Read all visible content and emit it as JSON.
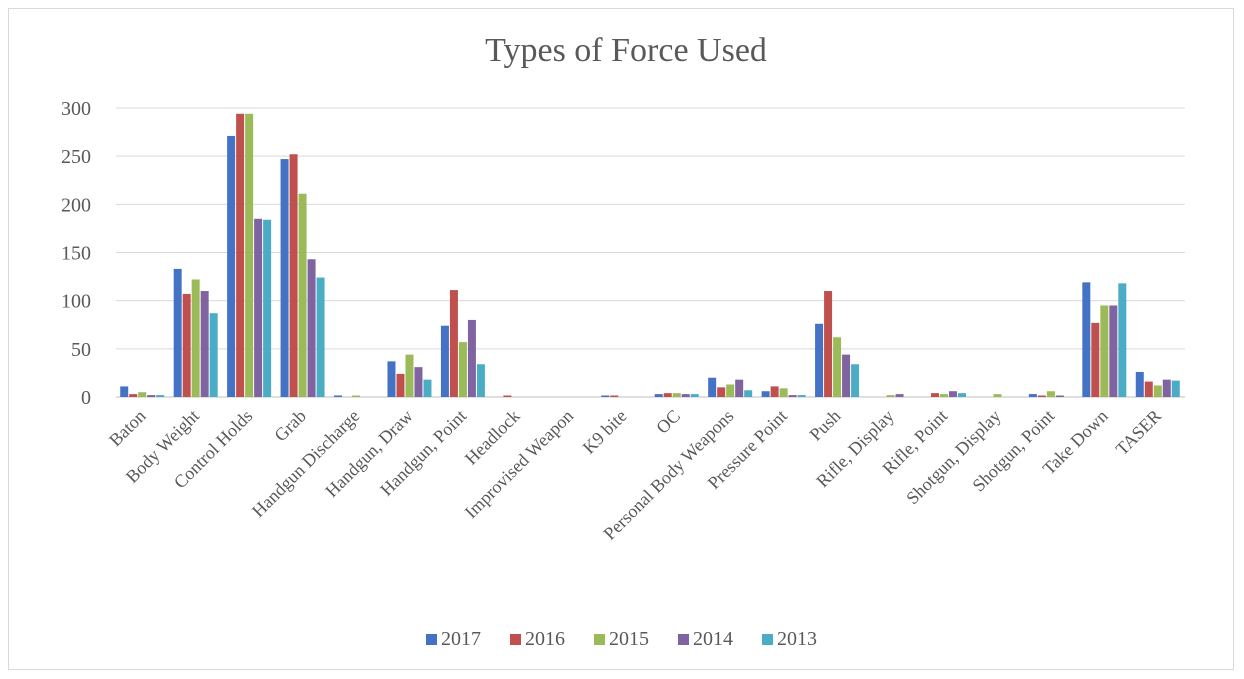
{
  "chart_data": {
    "type": "bar",
    "title": "Types of Force Used",
    "xlabel": "",
    "ylabel": "",
    "ylim": [
      0,
      300
    ],
    "yticks": [
      0,
      50,
      100,
      150,
      200,
      250,
      300
    ],
    "grid": true,
    "legend_position": "bottom",
    "categories": [
      "Baton",
      "Body Weight",
      "Control Holds",
      "Grab",
      "Handgun Discharge",
      "Handgun, Draw",
      "Handgun, Point",
      "Headlock",
      "Improvised Weapon",
      "K9 bite",
      "OC",
      "Personal Body Weapons",
      "Pressure Point",
      "Push",
      "Rifle, Display",
      "Rifle, Point",
      "Shotgun, Display",
      "Shotgun, Point",
      "Take Down",
      "TASER"
    ],
    "series": [
      {
        "name": "2017",
        "color": "#4472c4",
        "values": [
          11,
          133,
          271,
          247,
          1,
          37,
          74,
          0,
          0,
          1,
          3,
          20,
          6,
          76,
          0,
          0,
          0,
          3,
          119,
          26
        ]
      },
      {
        "name": "2016",
        "color": "#c0504d",
        "values": [
          3,
          107,
          294,
          252,
          0,
          24,
          111,
          1,
          0,
          1,
          4,
          10,
          11,
          110,
          0,
          4,
          0,
          1,
          77,
          16
        ]
      },
      {
        "name": "2015",
        "color": "#9bbb59",
        "values": [
          5,
          122,
          294,
          211,
          1,
          44,
          57,
          0,
          0,
          0,
          4,
          13,
          9,
          62,
          2,
          3,
          3,
          6,
          95,
          12
        ]
      },
      {
        "name": "2014",
        "color": "#8064a2",
        "values": [
          2,
          110,
          185,
          143,
          0,
          31,
          80,
          0,
          0,
          0,
          3,
          18,
          2,
          44,
          3,
          6,
          0,
          1,
          95,
          18
        ]
      },
      {
        "name": "2013",
        "color": "#4bacc6",
        "values": [
          2,
          87,
          184,
          124,
          0,
          18,
          34,
          0,
          0,
          0,
          3,
          7,
          2,
          34,
          0,
          4,
          0,
          0,
          118,
          17
        ]
      }
    ]
  }
}
